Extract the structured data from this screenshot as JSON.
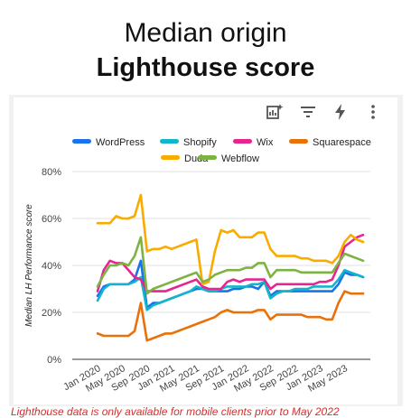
{
  "title": {
    "line1": "Median origin",
    "line2": "Lighthouse score"
  },
  "toolbar": {
    "icons": [
      "chart-explore-icon",
      "filter-icon",
      "bolt-icon",
      "more-vert-icon"
    ]
  },
  "footnote": "Lighthouse data is only available for mobile clients prior to May 2022",
  "chart_data": {
    "type": "line",
    "title": "",
    "xlabel": "",
    "ylabel": "Median LH Performance score",
    "ylim": [
      0,
      80
    ],
    "yticks": [
      "0%",
      "20%",
      "40%",
      "60%",
      "80%"
    ],
    "xticks": [
      "Jan 2020",
      "May 2020",
      "Sep 2020",
      "Jan 2021",
      "May 2021",
      "Sep 2021",
      "Jan 2022",
      "May 2022",
      "Sep 2022",
      "Jan 2023",
      "May 2023"
    ],
    "legend_position": "top",
    "grid": "horizontal",
    "x": [
      "2020-01",
      "2020-02",
      "2020-03",
      "2020-04",
      "2020-05",
      "2020-06",
      "2020-07",
      "2020-08",
      "2020-09",
      "2020-10",
      "2020-11",
      "2020-12",
      "2021-01",
      "2021-02",
      "2021-03",
      "2021-04",
      "2021-05",
      "2021-06",
      "2021-07",
      "2021-08",
      "2021-09",
      "2021-10",
      "2021-11",
      "2021-12",
      "2022-01",
      "2022-02",
      "2022-03",
      "2022-04",
      "2022-05",
      "2022-06",
      "2022-07",
      "2022-08",
      "2022-09",
      "2022-10",
      "2022-11",
      "2022-12",
      "2023-01",
      "2023-02",
      "2023-03",
      "2023-04",
      "2023-05",
      "2023-06",
      "2023-07",
      "2023-08"
    ],
    "series": [
      {
        "name": "WordPress",
        "color": "#1a73e8",
        "values": [
          27,
          31,
          32,
          32,
          32,
          32,
          34,
          42,
          22,
          24,
          24,
          25,
          26,
          27,
          28,
          29,
          30,
          30,
          29,
          29,
          29,
          29,
          30,
          30,
          31,
          31,
          30,
          33,
          27,
          29,
          29,
          29,
          29,
          29,
          29,
          29,
          29,
          29,
          29,
          32,
          37,
          36,
          36,
          35
        ]
      },
      {
        "name": "Shopify",
        "color": "#12b5cb",
        "values": [
          25,
          30,
          32,
          32,
          32,
          32,
          33,
          35,
          21,
          23,
          24,
          25,
          26,
          27,
          28,
          29,
          31,
          30,
          29,
          29,
          30,
          31,
          31,
          31,
          31,
          32,
          32,
          33,
          26,
          28,
          29,
          29,
          30,
          30,
          30,
          31,
          31,
          31,
          31,
          34,
          38,
          37,
          36,
          35
        ]
      },
      {
        "name": "Wix",
        "color": "#e52592",
        "values": [
          29,
          38,
          42,
          41,
          41,
          38,
          35,
          34,
          29,
          29,
          29,
          29,
          30,
          31,
          32,
          33,
          34,
          31,
          30,
          30,
          30,
          33,
          34,
          33,
          34,
          34,
          34,
          34,
          30,
          32,
          32,
          32,
          32,
          32,
          32,
          32,
          33,
          33,
          34,
          40,
          48,
          50,
          52,
          53
        ]
      },
      {
        "name": "Squarespace",
        "color": "#e8710a",
        "values": [
          11,
          10,
          10,
          10,
          10,
          10,
          12,
          24,
          8,
          9,
          10,
          11,
          11,
          12,
          13,
          14,
          15,
          16,
          17,
          18,
          20,
          21,
          20,
          20,
          20,
          20,
          21,
          21,
          17,
          19,
          19,
          19,
          19,
          19,
          18,
          18,
          18,
          17,
          17,
          24,
          29,
          28,
          28,
          28
        ]
      },
      {
        "name": "Duda",
        "color": "#f9ab00",
        "values": [
          58,
          58,
          58,
          61,
          60,
          60,
          61,
          70,
          46,
          47,
          47,
          48,
          47,
          48,
          49,
          50,
          51,
          32,
          33,
          46,
          55,
          54,
          55,
          52,
          52,
          52,
          54,
          54,
          47,
          44,
          44,
          44,
          44,
          43,
          43,
          42,
          42,
          42,
          41,
          44,
          50,
          53,
          51,
          50
        ]
      },
      {
        "name": "Webflow",
        "color": "#7cb342",
        "values": [
          31,
          36,
          40,
          40,
          41,
          40,
          44,
          52,
          28,
          30,
          31,
          32,
          33,
          34,
          35,
          36,
          37,
          33,
          34,
          36,
          37,
          38,
          38,
          38,
          39,
          39,
          41,
          41,
          35,
          38,
          38,
          38,
          38,
          37,
          37,
          37,
          37,
          37,
          37,
          41,
          45,
          44,
          43,
          42
        ]
      }
    ]
  }
}
